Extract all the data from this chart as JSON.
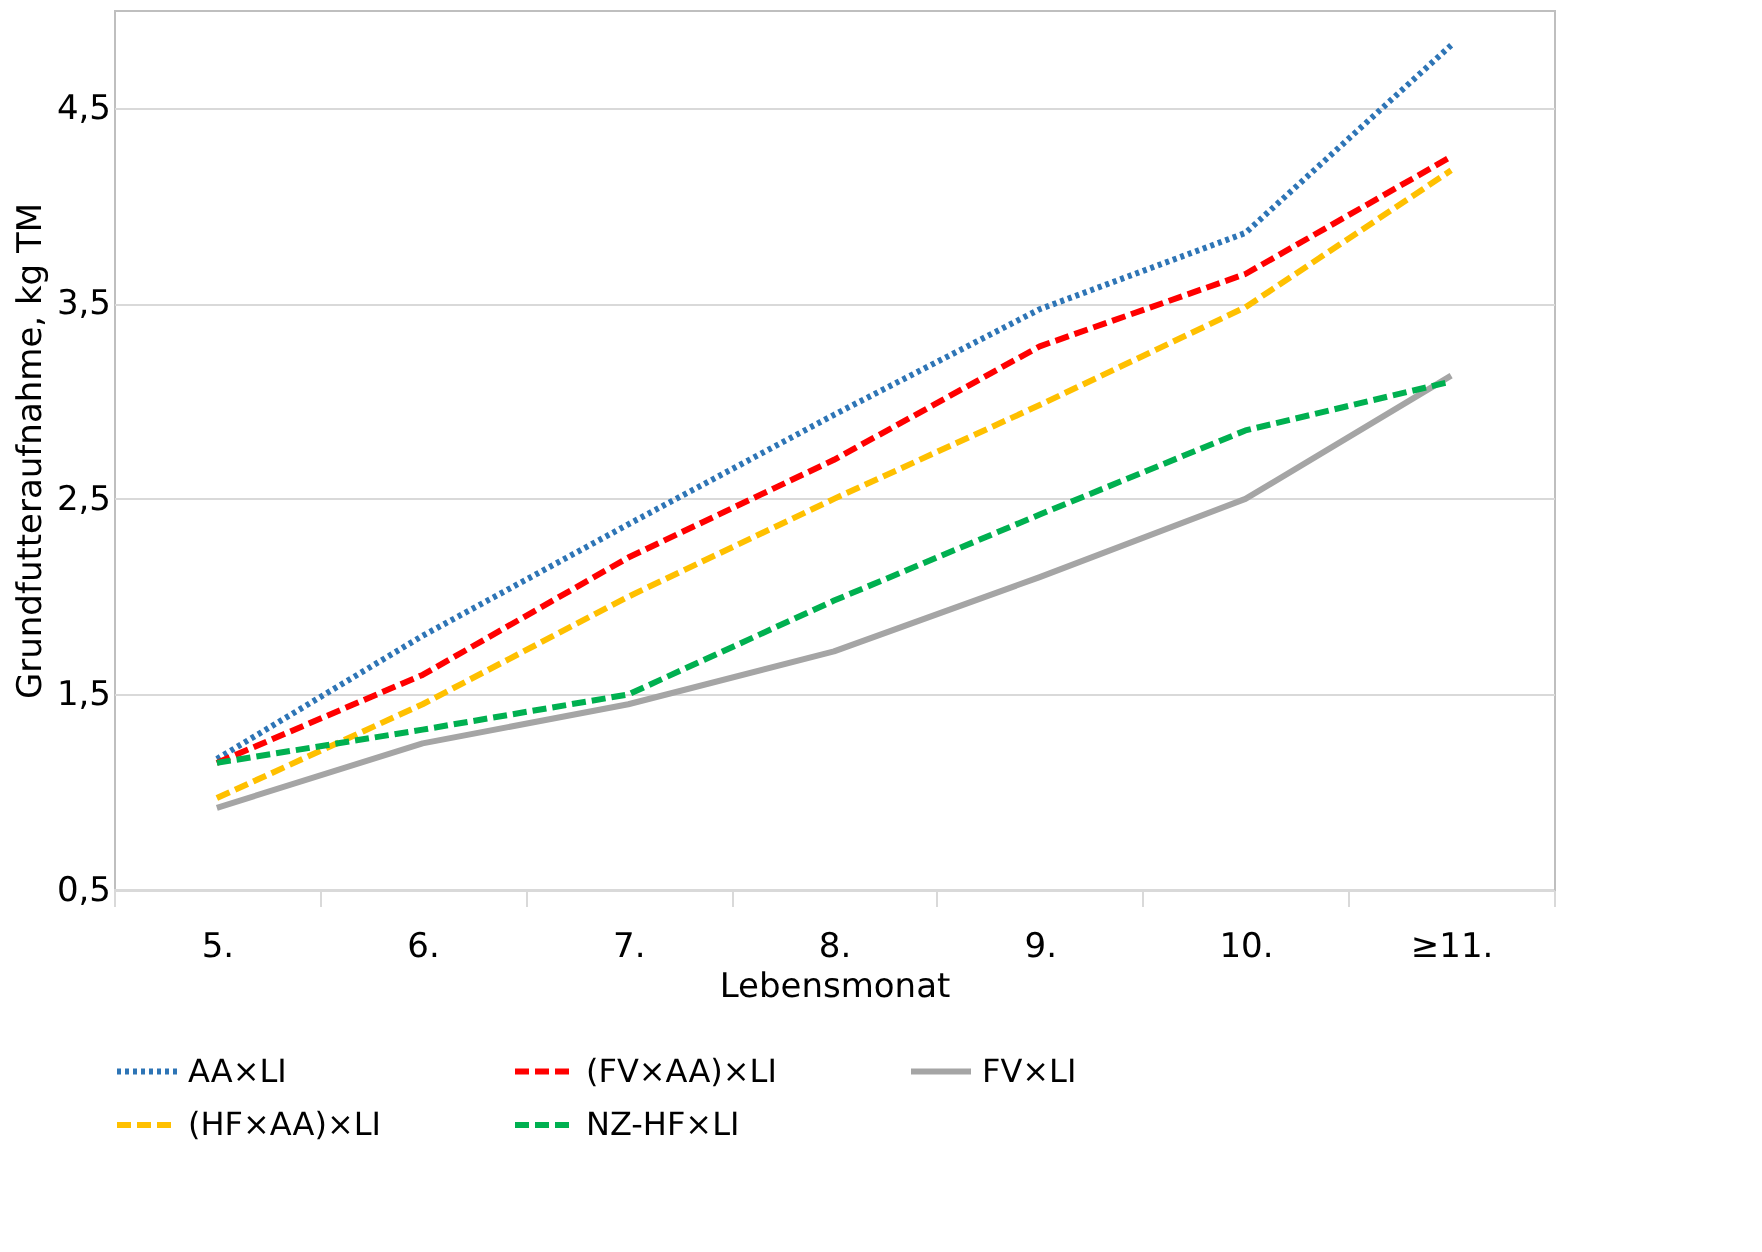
{
  "chart_data": {
    "type": "line",
    "xlabel": "Lebensmonat",
    "ylabel": "Grundfutteraufnahme, kg TM",
    "categories": [
      "5.",
      "6.",
      "7.",
      "8.",
      "9.",
      "10.",
      "≥11."
    ],
    "series": [
      {
        "name": "AA×LI",
        "color": "#2e75b6",
        "line_style": "dotted",
        "values": [
          1.17,
          1.8,
          2.37,
          2.93,
          3.47,
          3.86,
          4.82
        ]
      },
      {
        "name": "(FV×AA)×LI",
        "color": "#ff0000",
        "line_style": "dashed",
        "values": [
          1.15,
          1.6,
          2.2,
          2.7,
          3.28,
          3.65,
          4.25
        ]
      },
      {
        "name": "FV×LI",
        "color": "#a5a5a5",
        "line_style": "solid",
        "values": [
          0.92,
          1.25,
          1.45,
          1.72,
          2.1,
          2.5,
          3.13
        ]
      },
      {
        "name": "(HF×AA)×LI",
        "color": "#ffc000",
        "line_style": "dashed",
        "values": [
          0.97,
          1.45,
          2.0,
          2.5,
          2.98,
          3.48,
          4.18
        ]
      },
      {
        "name": "NZ-HF×LI",
        "color": "#00b050",
        "line_style": "dashed",
        "values": [
          1.15,
          1.32,
          1.5,
          1.98,
          2.42,
          2.85,
          3.1
        ]
      }
    ],
    "ylim": [
      0.5,
      5.0
    ],
    "yticks": [
      {
        "value": 0.5,
        "label": "0,5"
      },
      {
        "value": 1.5,
        "label": "1,5"
      },
      {
        "value": 2.5,
        "label": "2,5"
      },
      {
        "value": 3.5,
        "label": "3,5"
      },
      {
        "value": 4.5,
        "label": "4,5"
      }
    ],
    "grid": "y",
    "legend": "bottom",
    "marker": "none"
  }
}
